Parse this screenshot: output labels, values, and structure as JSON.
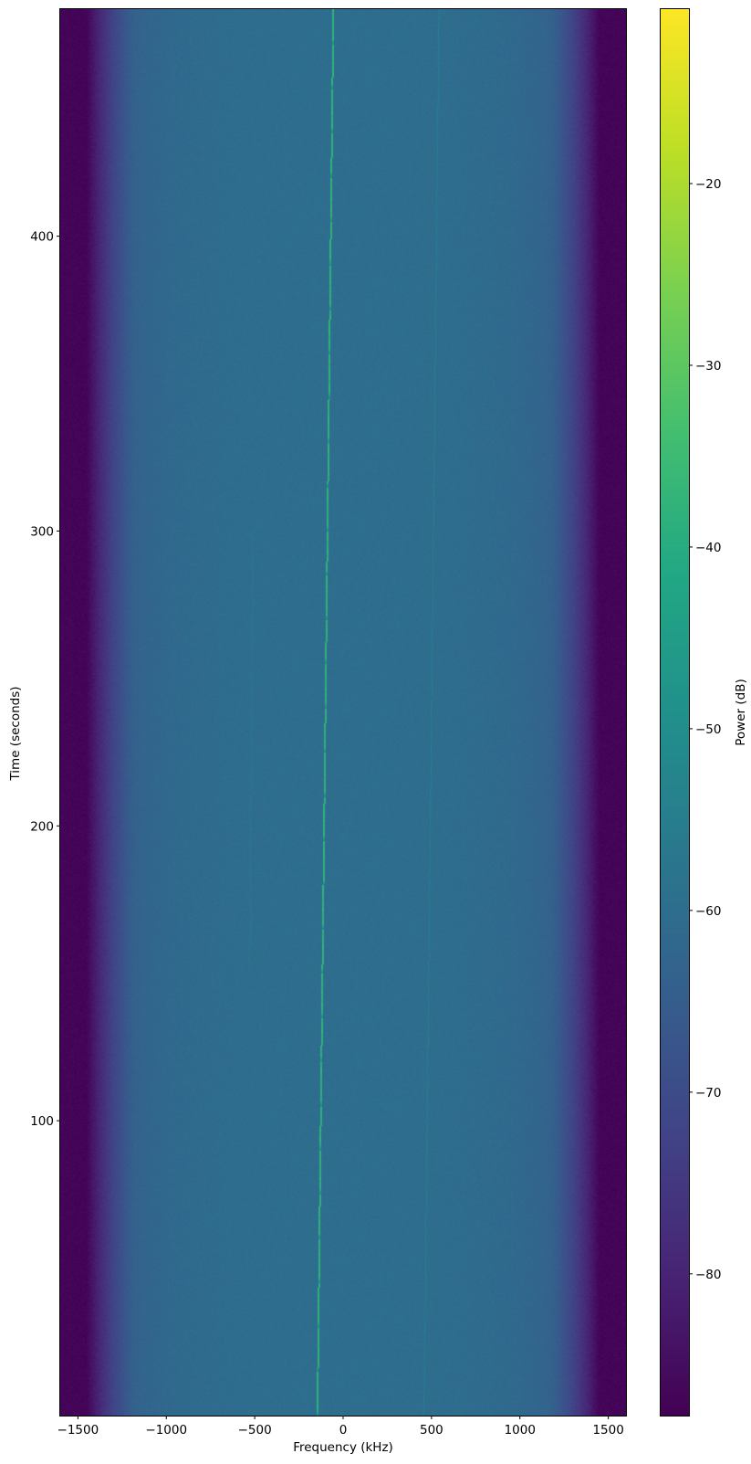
{
  "chart_data": {
    "type": "heatmap",
    "title": "",
    "xlabel": "Frequency (kHz)",
    "ylabel": "Time (seconds)",
    "xlim": [
      -1600,
      1600
    ],
    "ylim": [
      0,
      477
    ],
    "xticks": [
      -1500,
      -1000,
      -500,
      0,
      500,
      1000,
      1500
    ],
    "xtick_labels": [
      "−1500",
      "−1000",
      "−500",
      "0",
      "500",
      "1000",
      "1500"
    ],
    "yticks": [
      100,
      200,
      300,
      400
    ],
    "ytick_labels": [
      "100",
      "200",
      "300",
      "400"
    ],
    "grid": false,
    "colormap": "viridis",
    "colorbar": {
      "label": "Power (dB)",
      "range": [
        -87.8,
        -10.4
      ],
      "ticks": [
        -80,
        -70,
        -60,
        -50,
        -40,
        -30,
        -20
      ],
      "tick_labels": [
        "−80",
        "−70",
        "−60",
        "−50",
        "−40",
        "−30",
        "−20"
      ]
    },
    "noise_floor_db": -60,
    "edge_floor_db": -87,
    "passband_edges_khz": [
      -1450,
      -1150,
      1150,
      1450
    ],
    "signals": [
      {
        "freq_start_khz": -145,
        "freq_end_khz": -55,
        "time_range": [
          0,
          477
        ],
        "power_db": -38,
        "fades_every_s": 15
      },
      {
        "freq_start_khz": 455,
        "freq_end_khz": 540,
        "time_range": [
          0,
          477
        ],
        "power_db": -55
      },
      {
        "freq_start_khz": -530,
        "freq_end_khz": -515,
        "time_range": [
          150,
          300
        ],
        "power_db": -57
      }
    ]
  }
}
